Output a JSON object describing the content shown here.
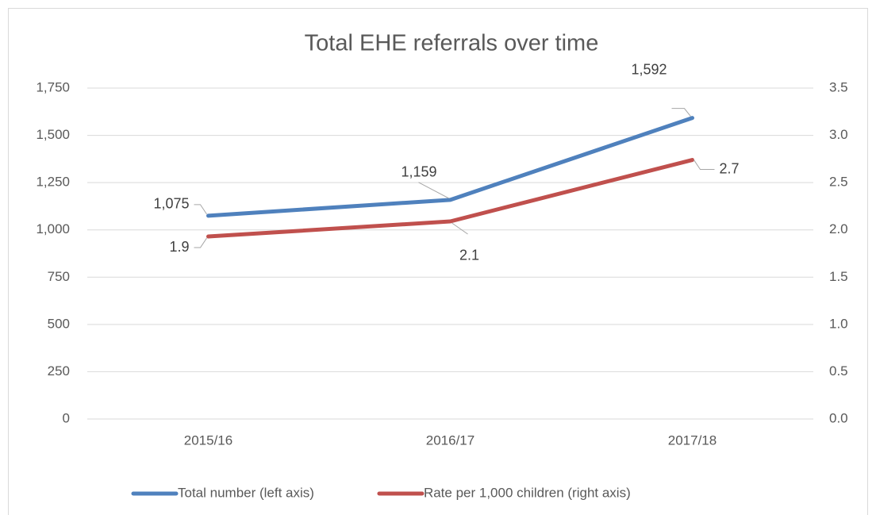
{
  "chart_data": {
    "type": "line",
    "title": "Total EHE referrals over time",
    "categories": [
      "2015/16",
      "2016/17",
      "2017/18"
    ],
    "series": [
      {
        "name": "Total number (left axis)",
        "color": "#4f81bd",
        "values": [
          1075,
          1159,
          1592
        ],
        "value_labels": [
          "1,075",
          "1,159",
          "1,592"
        ]
      },
      {
        "name": "Rate per 1,000 children (right axis)",
        "color": "#c0504d",
        "axis": "y2",
        "values": [
          1.93,
          2.09,
          2.74
        ],
        "value_labels": [
          "1.9",
          "2.1",
          "2.7"
        ]
      }
    ],
    "ylim": [
      0,
      1750
    ],
    "yticks": [
      0,
      250,
      500,
      750,
      {
        "value": 1000,
        "label": "1,000"
      },
      {
        "value": 1250,
        "label": "1,250"
      },
      {
        "value": 1500,
        "label": "1,500"
      },
      {
        "value": 1750,
        "label": "1,750"
      }
    ],
    "y2lim": [
      0,
      3.5
    ],
    "y2ticks": [
      {
        "value": 0,
        "label": "0.0"
      },
      0.5,
      {
        "value": 1,
        "label": "1.0"
      },
      1.5,
      {
        "value": 2,
        "label": "2.0"
      },
      2.5,
      {
        "value": 3,
        "label": "3.0"
      },
      3.5
    ],
    "grid": true,
    "legend": "bottom"
  }
}
